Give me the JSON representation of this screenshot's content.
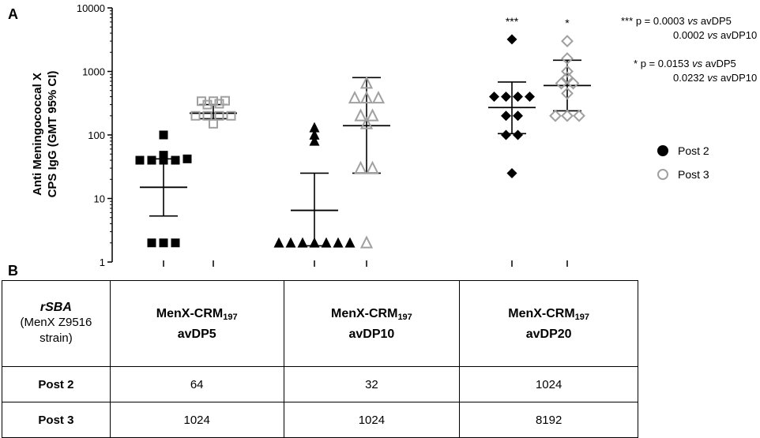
{
  "panel_a_label": "A",
  "panel_b_label": "B",
  "colors": {
    "post2": "#000000",
    "post3": "#a0a0a0",
    "line": "#000000"
  },
  "chart_data": {
    "type": "scatter",
    "yscale": "log",
    "ylim": [
      1,
      10000
    ],
    "ylabel_line1": "Anti Meningococcal X",
    "ylabel_line2": "CPS IgG (GMT 95% CI)",
    "ytick_labels": [
      "1",
      "10",
      "100",
      "1000",
      "10000"
    ],
    "yticks": [
      1,
      10,
      100,
      1000,
      10000
    ],
    "groups": [
      {
        "vaccine": "avDP5",
        "timepoint": "Post 2",
        "marker": "square",
        "filled": true,
        "values": [
          100,
          48,
          40,
          40,
          40,
          40,
          42,
          2,
          2,
          2
        ],
        "gmt": 15,
        "ci": [
          5.3,
          42
        ]
      },
      {
        "vaccine": "avDP5",
        "timepoint": "Post 3",
        "marker": "square",
        "filled": false,
        "values": [
          340,
          340,
          345,
          300,
          310,
          200,
          200,
          200,
          200,
          150
        ],
        "gmt": 220,
        "ci": [
          180,
          300
        ]
      },
      {
        "vaccine": "avDP10",
        "timepoint": "Post 2",
        "marker": "triangle",
        "filled": true,
        "values": [
          130,
          100,
          80,
          2,
          2,
          2,
          2,
          2,
          2,
          2
        ],
        "gmt": 6.5,
        "ci": [
          1.8,
          25
        ]
      },
      {
        "vaccine": "avDP10",
        "timepoint": "Post 3",
        "marker": "triangle",
        "filled": false,
        "values": [
          650,
          380,
          380,
          380,
          200,
          200,
          150,
          30,
          30,
          2
        ],
        "gmt": 140,
        "ci": [
          25,
          800
        ]
      },
      {
        "vaccine": "avDP20",
        "timepoint": "Post 2",
        "marker": "diamond",
        "filled": true,
        "values": [
          3200,
          400,
          400,
          400,
          400,
          200,
          200,
          100,
          100,
          25
        ],
        "gmt": 270,
        "ci": [
          105,
          680
        ]
      },
      {
        "vaccine": "avDP20",
        "timepoint": "Post 3",
        "marker": "diamond",
        "filled": false,
        "values": [
          3000,
          1600,
          1000,
          800,
          650,
          650,
          450,
          200,
          200,
          200
        ],
        "gmt": 600,
        "ci": [
          240,
          1500
        ]
      }
    ],
    "significance": [
      {
        "group_index": 4,
        "label": "***"
      },
      {
        "group_index": 5,
        "label": "*"
      }
    ]
  },
  "annotations": [
    {
      "stars": "***",
      "line1": "p = 0.0003 ",
      "vs": "vs",
      "ref1": " avDP5",
      "line2": "0.0002 ",
      "ref2": " avDP10"
    },
    {
      "stars": "*",
      "line1": "p = 0.0153 ",
      "vs": "vs",
      "ref1": " avDP5",
      "line2": "0.0232 ",
      "ref2": " avDP10"
    }
  ],
  "legend": [
    {
      "label": "Post 2",
      "style": "filled"
    },
    {
      "label": "Post 3",
      "style": "open"
    }
  ],
  "table": {
    "corner_title": "rSBA",
    "corner_note_line1": "(MenX Z9516",
    "corner_note_line2": "strain)",
    "columns": [
      {
        "prefix": "MenX-CRM",
        "sub": "197",
        "name": "avDP5"
      },
      {
        "prefix": "MenX-CRM",
        "sub": "197",
        "name": "avDP10"
      },
      {
        "prefix": "MenX-CRM",
        "sub": "197",
        "name": "avDP20"
      }
    ],
    "rows": [
      {
        "label": "Post 2",
        "values": [
          "64",
          "32",
          "1024"
        ]
      },
      {
        "label": "Post 3",
        "values": [
          "1024",
          "1024",
          "8192"
        ]
      }
    ]
  }
}
